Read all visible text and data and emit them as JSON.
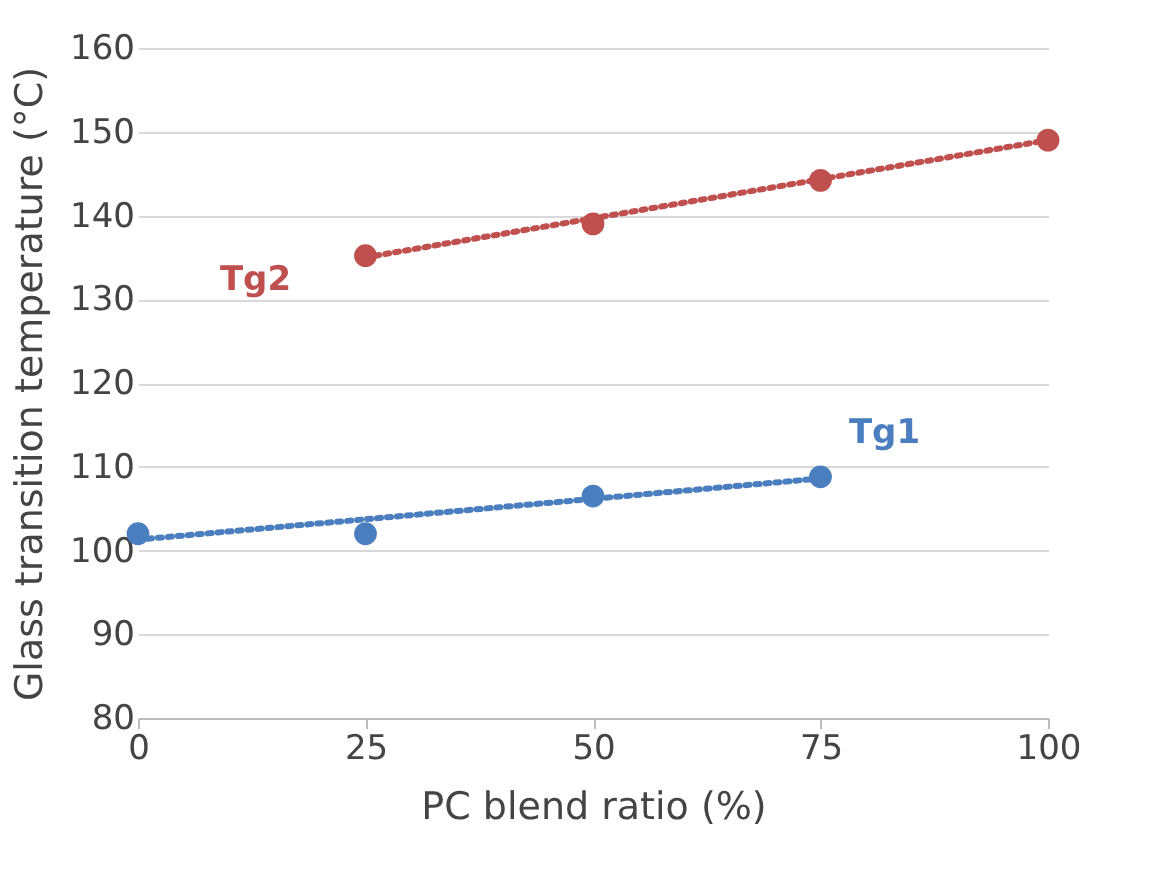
{
  "chart_data": {
    "type": "scatter",
    "xlabel": "PC blend ratio (%)",
    "ylabel": "Glass transition temperature (°C)",
    "xlim": [
      0,
      100
    ],
    "xticks": [
      0,
      25,
      50,
      75,
      100
    ],
    "ylim": [
      80,
      160
    ],
    "yticks": [
      80,
      90,
      100,
      110,
      120,
      130,
      140,
      150,
      160
    ],
    "grid": "y",
    "marker": "circle",
    "series": [
      {
        "name": "Tg1",
        "color": "#4a7ebf",
        "x": [
          0,
          25,
          50,
          75
        ],
        "values": [
          102,
          102,
          106.5,
          108.8
        ]
      },
      {
        "type": "line",
        "line_style": "dotted",
        "marker": "none",
        "color": "#4a7ebf",
        "x": [
          0,
          75
        ],
        "values": [
          101.3,
          108.6
        ]
      },
      {
        "name": "Tg2",
        "color": "#c0504d",
        "x": [
          25,
          50,
          75,
          100
        ],
        "values": [
          135.2,
          139,
          144.2,
          149
        ]
      },
      {
        "type": "line",
        "line_style": "dotted",
        "marker": "none",
        "color": "#c0504d",
        "x": [
          25,
          100
        ],
        "values": [
          135,
          149
        ]
      }
    ]
  }
}
